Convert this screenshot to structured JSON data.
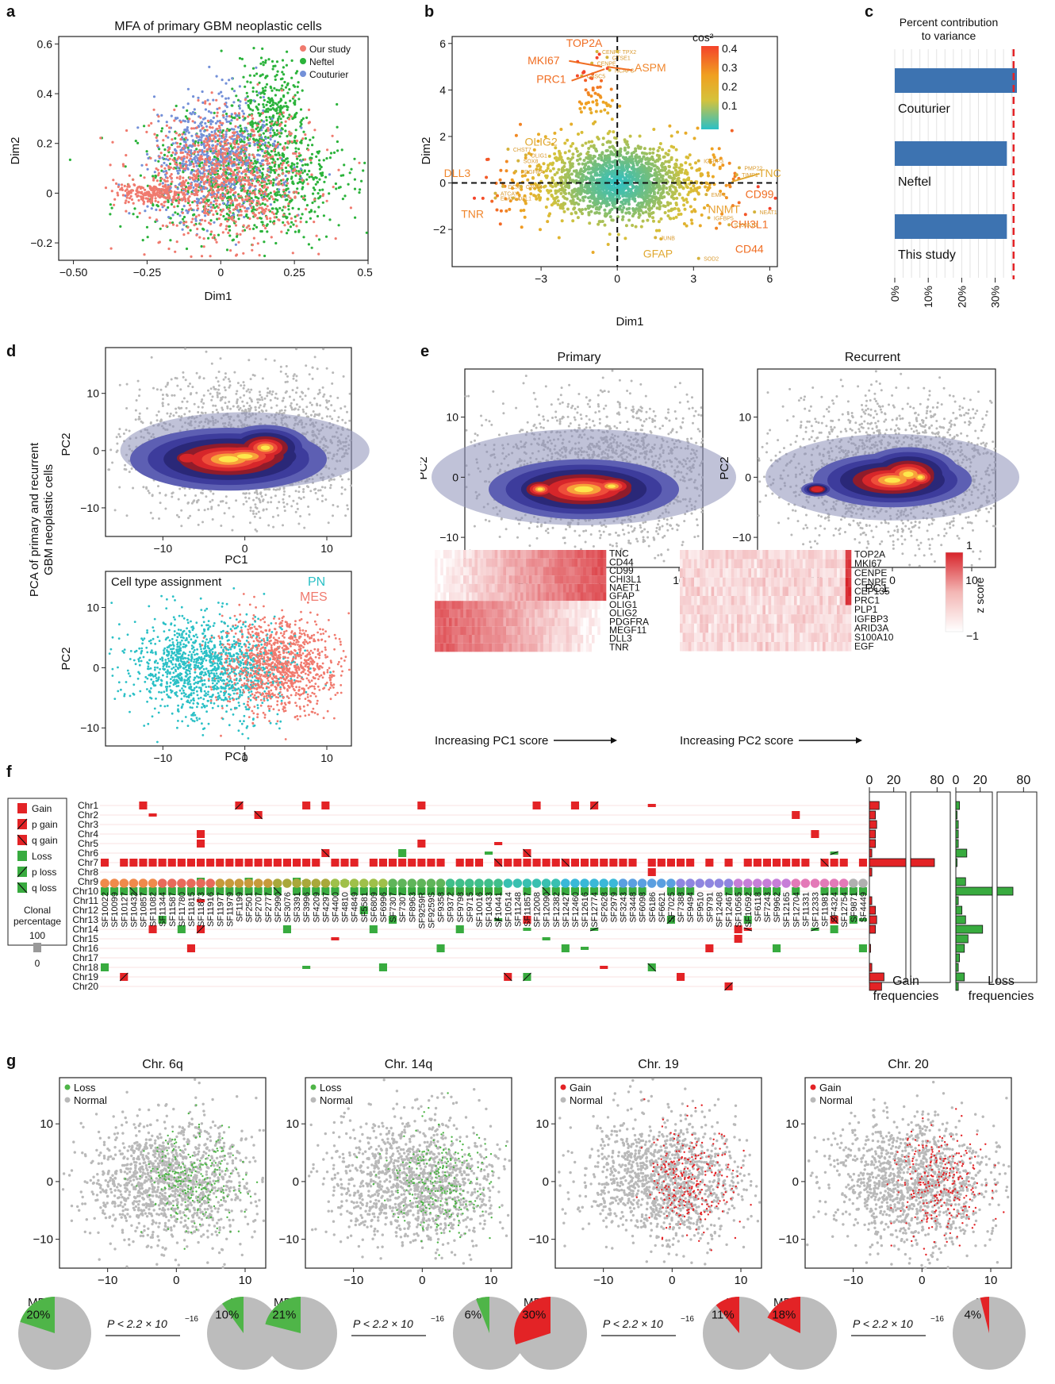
{
  "panels": {
    "a": {
      "label": "a",
      "title": "MFA of primary GBM neoplastic cells",
      "xlabel": "Dim1",
      "ylabel": "Dim2",
      "legend": [
        {
          "name": "Our study",
          "color": "#f07a6e"
        },
        {
          "name": "Neftel",
          "color": "#2bb33b"
        },
        {
          "name": "Couturier",
          "color": "#7390d8"
        }
      ]
    },
    "b": {
      "label": "b",
      "xlabel": "Dim1",
      "ylabel": "Dim2",
      "colorbar_title": "cos²",
      "colorbar_ticks": [
        "0.4",
        "0.3",
        "0.2",
        "0.1"
      ],
      "genes_large": [
        "TOP2A",
        "MKI67",
        "PRC1",
        "ASPM",
        "OLIG2",
        "DLL3",
        "TNR",
        "TNC",
        "CD99",
        "NNMT",
        "CHI3L1",
        "CD44",
        "GFAP"
      ],
      "genes_small": [
        "CENPF",
        "TPX2",
        "GTSE1",
        "CENPE",
        "NCAPG",
        "CASC5",
        "CHST7",
        "OLIG1",
        "SOX8",
        "PDGFRA",
        "ATCAY",
        "ELAVL4",
        "DCX",
        "DLL1",
        "GRIA4",
        "IGFBP3",
        "PMP22",
        "TIMP1",
        "EMP1",
        "NEAT1",
        "IGFBP5",
        "S100A10",
        "JUNB",
        "SOD2"
      ]
    },
    "c": {
      "label": "c",
      "title_line1": "Percent contribution",
      "title_line2": "to variance",
      "ticks": [
        "0%",
        "10%",
        "20%",
        "30%"
      ],
      "bars": [
        {
          "name": "Couturier",
          "value": 36.5
        },
        {
          "name": "Neftel",
          "value": 33.5
        },
        {
          "name": "This study",
          "value": 33.5
        }
      ],
      "reference_line": 35.5
    },
    "d": {
      "label": "d",
      "side_label_1": "PCA of primary and recurrent",
      "side_label_2": "GBM neoplastic cells",
      "xlabel": "PC1",
      "ylabel": "PC2",
      "assignment_title": "Cell type assignment",
      "pn": "PN",
      "mes": "MES"
    },
    "e": {
      "label": "e",
      "primary": "Primary",
      "recurrent": "Recurrent",
      "xlabel": "PC1",
      "ylabel": "PC2",
      "heat1_genes": [
        "TNC",
        "CD44",
        "CD99",
        "CHI3L1",
        "NAET1",
        "GFAP",
        "OLIG1",
        "OLIG2",
        "PDGFRA",
        "MEGF11",
        "DLL3",
        "TNR"
      ],
      "heat1_caption": "Increasing PC1 score",
      "heat2_genes": [
        "TOP2A",
        "MKI67",
        "CENPE",
        "CENPF",
        "CEP135",
        "PRC1",
        "PLP1",
        "IGFBP3",
        "ARID3A",
        "S100A10",
        "EGF"
      ],
      "heat2_caption": "Increasing PC2 score",
      "zscore_label": "z score",
      "zscore_max": "1",
      "zscore_min": "−1"
    },
    "f": {
      "label": "f",
      "legend": [
        "Gain",
        "p gain",
        "q gain",
        "Loss",
        "p loss",
        "q loss"
      ],
      "clonal_1": "Clonal",
      "clonal_2": "percentage",
      "clonal_max": "100",
      "clonal_min": "0",
      "chromosomes": [
        "Chr1",
        "Chr2",
        "Chr3",
        "Chr4",
        "Chr5",
        "Chr6",
        "Chr7",
        "Chr8",
        "Chr9",
        "Chr10",
        "Chr11",
        "Chr12",
        "Chr13",
        "Chr14",
        "Chr15",
        "Chr16",
        "Chr17",
        "Chr18",
        "Chr19",
        "Chr20"
      ],
      "samples": [
        "SF10022",
        "SF10099",
        "SF10127",
        "SF10432",
        "SF10857",
        "SF11082",
        "SF11344",
        "SF11587",
        "SF11780",
        "SF11815",
        "SF11873",
        "SF11916",
        "SF11977",
        "SF11979",
        "SF1199",
        "SF2501",
        "SF2707",
        "SF2777",
        "SF2990",
        "SF3076",
        "SF3391",
        "SF3996",
        "SF4209",
        "SF4297",
        "SF4400",
        "SF4810",
        "SF4849",
        "SF5581",
        "SF6809",
        "SF6996",
        "SF7307",
        "SF7307",
        "SF8963",
        "SF9259R",
        "SF9259S",
        "SF9358",
        "SF9372",
        "SF9798",
        "SF9715",
        "SF10016",
        "SF10433",
        "SF10441",
        "SF10514",
        "SF11248",
        "SF11857",
        "SF12008",
        "SF12090",
        "SF12382",
        "SF12427",
        "SF12460",
        "SF12616",
        "SF12774",
        "SF2628",
        "SF2979",
        "SF3243",
        "SF3448",
        "SF6098",
        "SF6186",
        "SF6621",
        "SF7025",
        "SF7388",
        "SF9494",
        "SF9510",
        "SF9791",
        "SF12408",
        "SF12467",
        "SF10565",
        "SF10592",
        "SF6118",
        "SF7243",
        "SF9962",
        "SF12165",
        "SF12704",
        "SF11331",
        "SF12333",
        "SF11981",
        "SF4324",
        "SF12754",
        "SF9871",
        "SF4449"
      ],
      "gain_axis": [
        "0",
        "20",
        "80"
      ],
      "loss_axis": [
        "0",
        "20",
        "80"
      ],
      "gain_caption_1": "Gain",
      "gain_caption_2": "frequencies",
      "loss_caption_1": "Loss",
      "loss_caption_2": "frequencies",
      "gain_freq": [
        8,
        5,
        6,
        5,
        5,
        2,
        78,
        2,
        0,
        0,
        2,
        5,
        6,
        5,
        0,
        1,
        0,
        2,
        12,
        10
      ],
      "loss_freq": [
        3,
        1,
        2,
        2,
        2,
        9,
        1,
        0,
        8,
        72,
        2,
        5,
        8,
        22,
        10,
        7,
        3,
        2,
        7,
        2
      ]
    },
    "g": {
      "label": "g",
      "plots": [
        {
          "title": "Chr. 6q",
          "event": "Loss",
          "normal": "Normal",
          "mes_pct": "20%",
          "pn_pct": "10%",
          "mes": 20,
          "pn": 10,
          "color": "#4fb548"
        },
        {
          "title": "Chr. 14q",
          "event": "Loss",
          "normal": "Normal",
          "mes_pct": "21%",
          "pn_pct": "6%",
          "mes": 21,
          "pn": 6,
          "color": "#4fb548"
        },
        {
          "title": "Chr. 19",
          "event": "Gain",
          "normal": "Normal",
          "mes_pct": "30%",
          "pn_pct": "11%",
          "mes": 30,
          "pn": 11,
          "color": "#e32326"
        },
        {
          "title": "Chr. 20",
          "event": "Gain",
          "normal": "Normal",
          "mes_pct": "18%",
          "pn_pct": "4%",
          "mes": 18,
          "pn": 4,
          "color": "#e32326"
        }
      ],
      "mes": "MES",
      "pn": "PN",
      "pvalue": "P < 2.2 × 10",
      "pexp": "−16"
    }
  },
  "axis_ticks": {
    "a_x": [
      "−0.50",
      "−0.25",
      "0",
      "0.25",
      "0.50"
    ],
    "a_y": [
      "0.6",
      "0.4",
      "0.2",
      "0",
      "−0.2"
    ],
    "b_x": [
      "−3",
      "0",
      "3",
      "6"
    ],
    "b_y": [
      "6",
      "4",
      "2",
      "0",
      "−2"
    ],
    "pc_x": [
      "−10",
      "0",
      "10"
    ],
    "pc_y": [
      "10",
      "0",
      "−10"
    ]
  }
}
